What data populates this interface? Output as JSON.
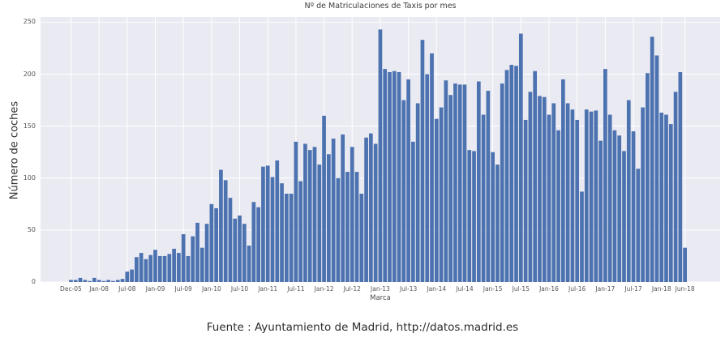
{
  "page": {
    "caption": "Fuente : Ayuntamiento de Madrid, http://datos.madrid.es"
  },
  "chart_data": {
    "type": "bar",
    "title": "Nº de Matriculaciones de Taxis por mes",
    "xlabel": "Marca",
    "ylabel": "Número de coches",
    "ylim": [
      0,
      255
    ],
    "yticks": [
      0,
      50,
      100,
      150,
      200,
      250
    ],
    "grid": true,
    "legend": "none",
    "bar_color": "#4c72b0",
    "plot_bg_color": "#eaeaf2",
    "grid_color": "#ffffff",
    "n_bars": 132,
    "values": [
      2,
      2,
      4,
      2,
      1,
      4,
      2,
      1,
      2,
      1,
      2,
      3,
      10,
      12,
      24,
      28,
      22,
      26,
      31,
      25,
      25,
      27,
      32,
      28,
      46,
      25,
      44,
      57,
      33,
      56,
      75,
      71,
      108,
      98,
      81,
      61,
      64,
      56,
      35,
      77,
      72,
      111,
      112,
      101,
      117,
      95,
      85,
      85,
      135,
      97,
      133,
      127,
      130,
      113,
      160,
      123,
      138,
      100,
      142,
      106,
      130,
      106,
      85,
      139,
      143,
      133,
      243,
      205,
      202,
      203,
      202,
      175,
      195,
      135,
      172,
      233,
      200,
      220,
      157,
      168,
      194,
      180,
      191,
      190,
      190,
      127,
      126,
      193,
      161,
      184,
      125,
      113,
      191,
      204,
      209,
      208,
      239,
      156,
      183,
      203,
      179,
      178,
      161,
      172,
      146,
      195,
      172,
      166,
      156,
      87,
      166,
      164,
      165,
      136,
      205,
      161,
      146,
      141,
      126,
      175,
      145,
      109,
      168,
      201,
      236,
      218,
      163,
      161,
      152,
      183,
      202,
      33
    ],
    "x_tick_positions": [
      0,
      6,
      12,
      18,
      24,
      30,
      36,
      42,
      48,
      54,
      60,
      66,
      72,
      78,
      84,
      90,
      96,
      102,
      108,
      114,
      120,
      126,
      131
    ],
    "x_tick_labels": [
      "Dec-05",
      "Jan-08",
      "Jul-08",
      "Jan-09",
      "Jul-09",
      "Jan-10",
      "Jul-10",
      "Jan-11",
      "Jul-11",
      "Jan-12",
      "Jul-12",
      "Jan-13",
      "Jul-13",
      "Jan-14",
      "Jul-14",
      "Jan-15",
      "Jul-15",
      "Jan-16",
      "Jul-16",
      "Jan-17",
      "Jul-17",
      "Jan-18",
      "Jun-18"
    ]
  }
}
